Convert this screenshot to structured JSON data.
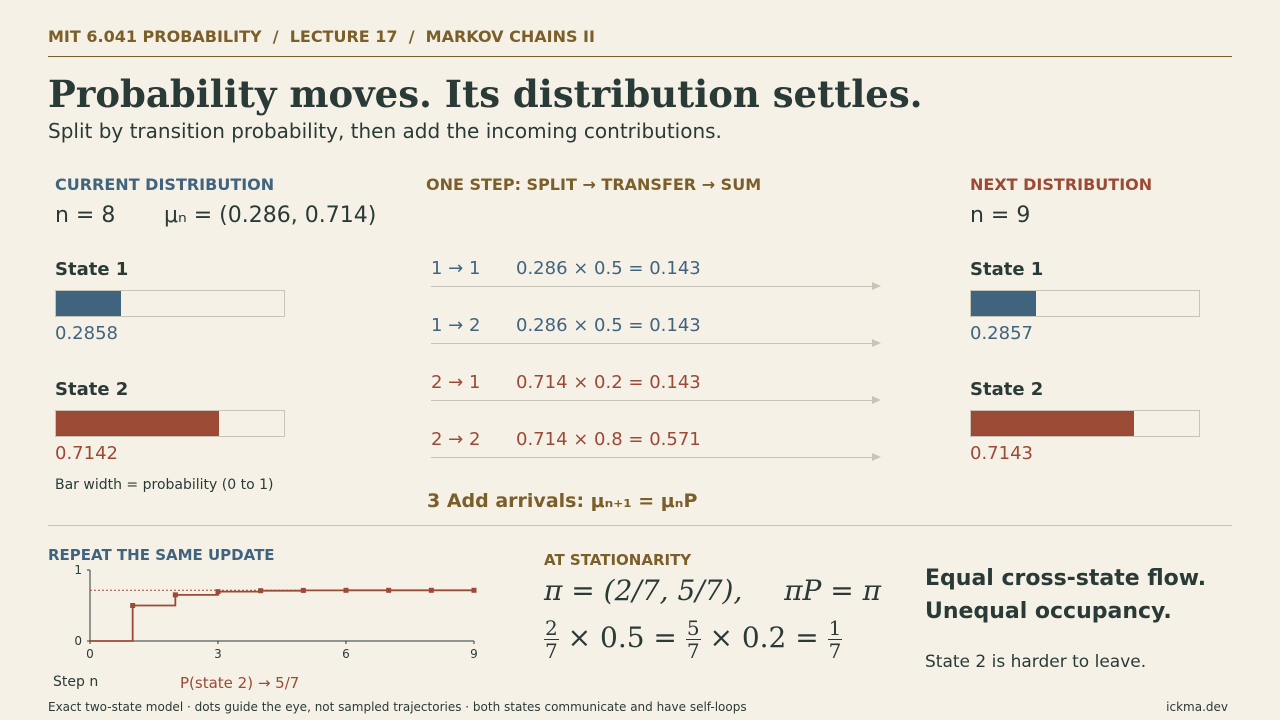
{
  "header": {
    "kicker": "MIT 6.041 PROBABILITY  /  LECTURE 17  /  MARKOV CHAINS II",
    "title": "Probability moves. Its distribution settles.",
    "subtitle": "Split by transition probability, then add the incoming contributions."
  },
  "current": {
    "heading": "CURRENT DISTRIBUTION",
    "n_label": "n = 8",
    "mu_label": "μₙ = (0.286, 0.714)",
    "states": [
      {
        "label": "State 1",
        "value": "0.2858",
        "fraction": 0.2858,
        "color": "#41647e"
      },
      {
        "label": "State 2",
        "value": "0.7142",
        "fraction": 0.7142,
        "color": "#9a4a35"
      }
    ],
    "caption": "Bar width = probability (0 to 1)"
  },
  "step": {
    "heading": "ONE STEP: SPLIT → TRANSFER → SUM",
    "transfers": [
      {
        "route": "1 → 1",
        "calc": "0.286 × 0.5 = 0.143",
        "color": "#41647e"
      },
      {
        "route": "1 → 2",
        "calc": "0.286 × 0.5 = 0.143",
        "color": "#41647e"
      },
      {
        "route": "2 → 1",
        "calc": "0.714 × 0.2 = 0.143",
        "color": "#9a4a35"
      },
      {
        "route": "2 → 2",
        "calc": "0.714 × 0.8 = 0.571",
        "color": "#9a4a35"
      }
    ],
    "sum_label": "3  Add arrivals: μₙ₊₁ = μₙP"
  },
  "next": {
    "heading": "NEXT DISTRIBUTION",
    "n_label": "n = 9",
    "states": [
      {
        "label": "State 1",
        "value": "0.2857",
        "fraction": 0.2857,
        "color": "#41647e"
      },
      {
        "label": "State 2",
        "value": "0.7143",
        "fraction": 0.7143,
        "color": "#9a4a35"
      }
    ]
  },
  "repeat": {
    "heading": "REPEAT THE SAME UPDATE",
    "xlabel": "Step n",
    "legend": "P(state 2) → 5/7"
  },
  "chart_data": {
    "type": "line",
    "x": [
      0,
      1,
      2,
      3,
      4,
      5,
      6,
      7,
      8,
      9
    ],
    "series": [
      {
        "values": [
          0,
          0.5,
          0.65,
          0.695,
          0.7085,
          0.7126,
          0.7138,
          0.7141,
          0.7142,
          0.7143
        ],
        "color": "#9a4a35"
      }
    ],
    "reference_line": 0.7143,
    "xlim": [
      0,
      9
    ],
    "ylim": [
      0,
      1
    ],
    "xticks": [
      "0",
      "3",
      "6",
      "9"
    ],
    "yticks": [
      "0",
      "1"
    ]
  },
  "stationarity": {
    "heading": "AT STATIONARITY",
    "pi_def": "π = (2/7,  5/7),",
    "pi_eq": "πP = π",
    "balance": {
      "a_num": "2",
      "a_den": "7",
      "a_mult": "× 0.5 =",
      "b_num": "5",
      "b_den": "7",
      "b_mult": "× 0.2 =",
      "c_num": "1",
      "c_den": "7"
    }
  },
  "takeaway": {
    "line1": "Equal cross-state flow.",
    "line2": "Unequal occupancy.",
    "note": "State 2 is harder to leave."
  },
  "footer": {
    "note": "Exact two-state model · dots guide the eye, not sampled trajectories · both states communicate and have self-loops",
    "brand": "ickma.dev"
  }
}
